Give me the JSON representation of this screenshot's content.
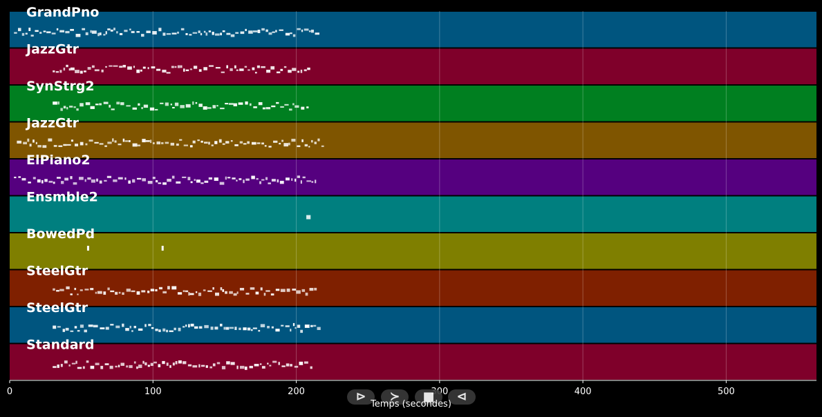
{
  "chart_data": {
    "type": "piano-roll",
    "xlabel": "Temps (secondes)",
    "xlim": [
      0,
      563
    ],
    "xticks": [
      0,
      100,
      200,
      300,
      400,
      500
    ],
    "grid": true,
    "tracks": [
      {
        "name": "GrandPno",
        "color": "#00557f",
        "note_start": 3,
        "note_end": 215
      },
      {
        "name": "JazzGtr",
        "color": "#7f002a",
        "note_start": 30,
        "note_end": 210
      },
      {
        "name": "SynStrg2",
        "color": "#007f20",
        "note_start": 30,
        "note_end": 208
      },
      {
        "name": "JazzGtr",
        "color": "#7f5500",
        "note_start": 5,
        "note_end": 218
      },
      {
        "name": "ElPiano2",
        "color": "#55007f",
        "note_start": 3,
        "note_end": 215
      },
      {
        "name": "Ensmble2",
        "color": "#007f7f",
        "note_start": 207,
        "note_end": 210
      },
      {
        "name": "BowedPd",
        "color": "#7f7f00",
        "note_start": 53,
        "note_end": 107
      },
      {
        "name": "SteelGtr",
        "color": "#7f2000",
        "note_start": 30,
        "note_end": 215
      },
      {
        "name": "SteelGtr",
        "color": "#00557f",
        "note_start": 30,
        "note_end": 215
      },
      {
        "name": "Standard",
        "color": "#7f002a",
        "note_start": 30,
        "note_end": 210
      }
    ]
  },
  "controls": {
    "play_label": "⊳",
    "forward_label": "≻",
    "stop_label": "■",
    "back_label": "⊲"
  }
}
